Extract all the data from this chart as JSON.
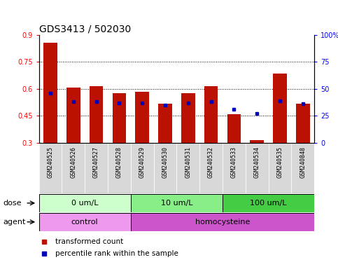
{
  "title": "GDS3413 / 502030",
  "samples": [
    "GSM240525",
    "GSM240526",
    "GSM240527",
    "GSM240528",
    "GSM240529",
    "GSM240530",
    "GSM240531",
    "GSM240532",
    "GSM240533",
    "GSM240534",
    "GSM240535",
    "GSM240848"
  ],
  "transformed_count": [
    0.855,
    0.605,
    0.615,
    0.575,
    0.585,
    0.515,
    0.575,
    0.615,
    0.46,
    0.315,
    0.685,
    0.515
  ],
  "percentile_rank_pct": [
    46,
    38,
    38,
    37,
    37,
    35,
    37,
    38,
    31,
    27,
    39,
    36
  ],
  "ylim_left": [
    0.3,
    0.9
  ],
  "ylim_right": [
    0,
    100
  ],
  "yticks_left": [
    0.3,
    0.45,
    0.6,
    0.75,
    0.9
  ],
  "yticks_right": [
    0,
    25,
    50,
    75,
    100
  ],
  "ytick_labels_left": [
    "0.3",
    "0.45",
    "0.6",
    "0.75",
    "0.9"
  ],
  "ytick_labels_right": [
    "0",
    "25",
    "50",
    "75",
    "100%"
  ],
  "dose_groups": [
    {
      "label": "0 um/L",
      "start": 0,
      "end": 3,
      "color": "#ccffcc"
    },
    {
      "label": "10 um/L",
      "start": 4,
      "end": 7,
      "color": "#88ee88"
    },
    {
      "label": "100 um/L",
      "start": 8,
      "end": 11,
      "color": "#44cc44"
    }
  ],
  "agent_groups": [
    {
      "label": "control",
      "start": 0,
      "end": 3,
      "color": "#ee88ee"
    },
    {
      "label": "homocysteine",
      "start": 4,
      "end": 11,
      "color": "#dd66dd"
    }
  ],
  "bar_color": "#bb1100",
  "dot_color": "#0000bb",
  "legend_red": "transformed count",
  "legend_blue": "percentile rank within the sample",
  "title_fontsize": 10,
  "tick_fontsize": 7,
  "label_fontsize": 8,
  "sample_fontsize": 6
}
